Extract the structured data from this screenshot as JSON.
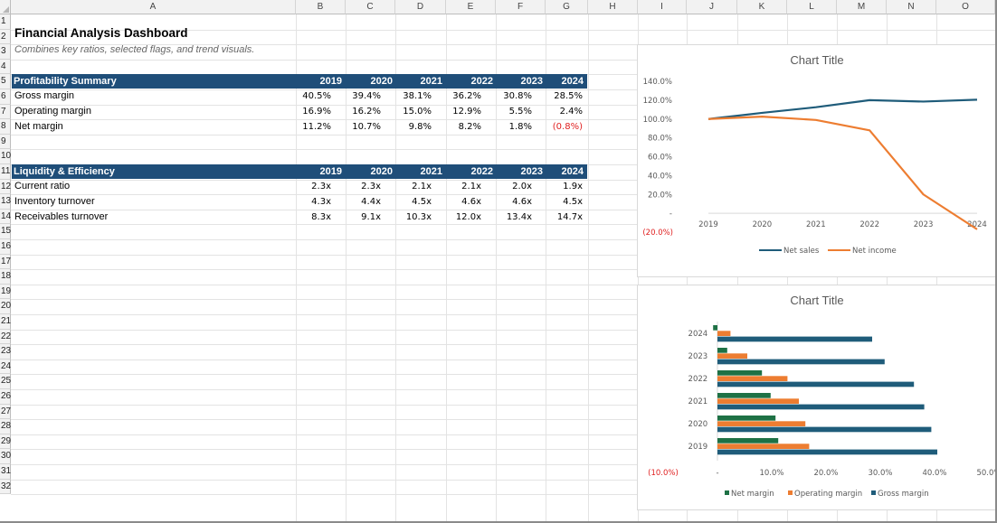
{
  "columns": [
    "A",
    "B",
    "C",
    "D",
    "E",
    "F",
    "G",
    "H",
    "I",
    "J",
    "K",
    "L",
    "M",
    "N",
    "O"
  ],
  "rows": [
    "1",
    "2",
    "3",
    "4",
    "5",
    "6",
    "7",
    "8",
    "9",
    "10",
    "11",
    "12",
    "13",
    "14",
    "15",
    "16",
    "17",
    "18",
    "19",
    "20",
    "21",
    "22",
    "23",
    "24",
    "25",
    "26",
    "27",
    "28",
    "29",
    "30",
    "31",
    "32"
  ],
  "dashboard": {
    "title": "Financial Analysis Dashboard",
    "subtitle": "Combines key ratios, selected flags, and trend visuals."
  },
  "profitability": {
    "header": "Profitability Summary",
    "years": [
      "2019",
      "2020",
      "2021",
      "2022",
      "2023",
      "2024"
    ],
    "rows": [
      {
        "label": "Gross margin",
        "values": [
          "40.5%",
          "39.4%",
          "38.1%",
          "36.2%",
          "30.8%",
          "28.5%"
        ]
      },
      {
        "label": "Operating margin",
        "values": [
          "16.9%",
          "16.2%",
          "15.0%",
          "12.9%",
          "5.5%",
          "2.4%"
        ]
      },
      {
        "label": "Net margin",
        "values": [
          "11.2%",
          "10.7%",
          "9.8%",
          "8.2%",
          "1.8%",
          "(0.8%)"
        ]
      }
    ]
  },
  "liquidity": {
    "header": "Liquidity & Efficiency",
    "years": [
      "2019",
      "2020",
      "2021",
      "2022",
      "2023",
      "2024"
    ],
    "rows": [
      {
        "label": "Current ratio",
        "values": [
          "2.3x",
          "2.3x",
          "2.1x",
          "2.1x",
          "2.0x",
          "1.9x"
        ]
      },
      {
        "label": "Inventory turnover",
        "values": [
          "4.3x",
          "4.4x",
          "4.5x",
          "4.6x",
          "4.6x",
          "4.5x"
        ]
      },
      {
        "label": "Receivables turnover",
        "values": [
          "8.3x",
          "9.1x",
          "10.3x",
          "12.0x",
          "13.4x",
          "14.7x"
        ]
      }
    ]
  },
  "colors": {
    "header_band": "#1f4e79",
    "net_sales": "#1f5c7a",
    "net_income": "#ed7d31",
    "net_margin": "#1e7145",
    "negative": "#e02020"
  },
  "chart_data": [
    {
      "type": "line",
      "title": "Chart Title",
      "x": [
        "2019",
        "2020",
        "2021",
        "2022",
        "2023",
        "2024"
      ],
      "series": [
        {
          "name": "Net sales",
          "values": [
            100.0,
            106.5,
            112.5,
            120.0,
            118.5,
            120.5
          ]
        },
        {
          "name": "Net income",
          "values": [
            100.0,
            102.5,
            99.0,
            88.0,
            20.0,
            -17.0
          ]
        }
      ],
      "y_ticks": [
        "140.0%",
        "120.0%",
        "100.0%",
        "80.0%",
        "60.0%",
        "40.0%",
        "20.0%",
        "-",
        "(20.0%)"
      ],
      "ylim": [
        -20,
        140
      ],
      "legend": "bottom"
    },
    {
      "type": "bar",
      "orientation": "horizontal",
      "title": "Chart Title",
      "categories": [
        "2024",
        "2023",
        "2022",
        "2021",
        "2020",
        "2019"
      ],
      "series": [
        {
          "name": "Net margin",
          "values": [
            -0.8,
            1.8,
            8.2,
            9.8,
            10.7,
            11.2
          ]
        },
        {
          "name": "Operating margin",
          "values": [
            2.4,
            5.5,
            12.9,
            15.0,
            16.2,
            16.9
          ]
        },
        {
          "name": "Gross margin",
          "values": [
            28.5,
            30.8,
            36.2,
            38.1,
            39.4,
            40.5
          ]
        }
      ],
      "x_ticks": [
        "(10.0%)",
        "-",
        "10.0%",
        "20.0%",
        "30.0%",
        "40.0%",
        "50.0%"
      ],
      "xlim": [
        -10,
        50
      ],
      "legend": "bottom"
    }
  ]
}
